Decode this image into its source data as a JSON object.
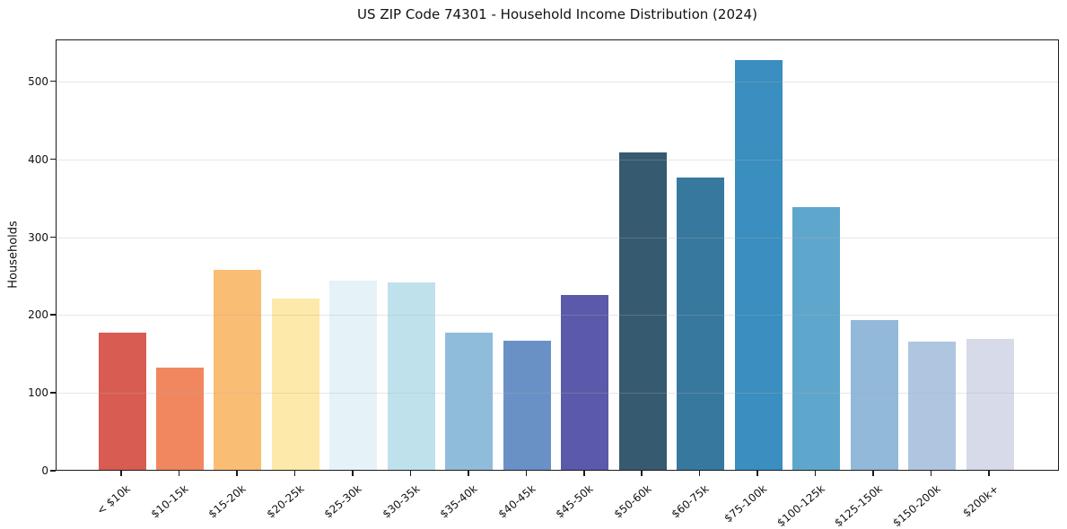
{
  "figure": {
    "background": "#ffffff",
    "spine_color": "#1b1b1b"
  },
  "chart_data": {
    "type": "bar",
    "title": "US ZIP Code 74301 - Household Income Distribution (2024)",
    "xlabel": "",
    "ylabel": "Households",
    "categories": [
      "< $10k",
      "$10-15k",
      "$15-20k",
      "$20-25k",
      "$25-30k",
      "$30-35k",
      "$35-40k",
      "$40-45k",
      "$45-50k",
      "$50-60k",
      "$60-75k",
      "$75-100k",
      "$100-125k",
      "$125-150k",
      "$150-200k",
      "$200k+"
    ],
    "values": [
      176,
      131,
      257,
      220,
      243,
      241,
      176,
      166,
      225,
      408,
      376,
      526,
      338,
      192,
      165,
      168
    ],
    "bar_colors": [
      "#d85c51",
      "#f0875f",
      "#fabd74",
      "#fde9a9",
      "#e5f2f7",
      "#bfe1ec",
      "#8fbcdb",
      "#6991c6",
      "#5b59a9",
      "#365a70",
      "#37789e",
      "#3a8ec0",
      "#5fa6cc",
      "#92b8da",
      "#afc6e1",
      "#d7dae8"
    ],
    "ylim": [
      0,
      554
    ],
    "yticks": [
      0,
      100,
      200,
      300,
      400,
      500
    ],
    "grid": "horizontal-above-bars",
    "grid_color": "#b0b0b0",
    "grid_alpha": 0.3,
    "legend": "none",
    "x_label_rotation_deg": 40
  }
}
